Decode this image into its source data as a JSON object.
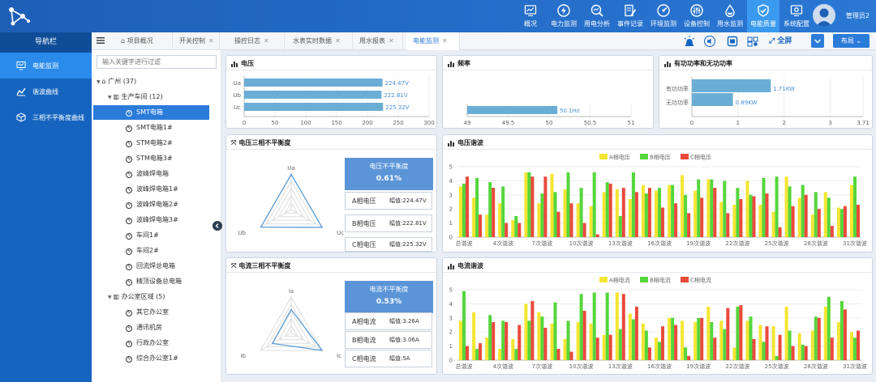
{
  "header": {
    "nav": [
      {
        "label": "概况",
        "icon": "chart-window-icon"
      },
      {
        "label": "电力监测",
        "icon": "lightning-circle-icon"
      },
      {
        "label": "用电分析",
        "icon": "magnifier-chart-icon"
      },
      {
        "label": "事件记录",
        "icon": "document-pen-icon"
      },
      {
        "label": "环境监测",
        "icon": "gauge-icon"
      },
      {
        "label": "设备控制",
        "icon": "sliders-icon"
      },
      {
        "label": "用水监测",
        "icon": "water-drop-icon"
      },
      {
        "label": "电能质量",
        "icon": "shield-check-icon"
      },
      {
        "label": "系统配置",
        "icon": "settings-window-icon"
      }
    ],
    "active_nav": 7,
    "user": "管理员2"
  },
  "sidebar": {
    "title": "导航栏",
    "items": [
      {
        "label": "电能监测"
      },
      {
        "label": "谐波曲线"
      },
      {
        "label": "三相不平衡度曲线"
      }
    ]
  },
  "tabs": [
    {
      "label": "项目概况"
    },
    {
      "label": "开关控制"
    },
    {
      "label": "操控日志"
    },
    {
      "label": "水表实时数据"
    },
    {
      "label": "用水报表"
    },
    {
      "label": "电能监测"
    }
  ],
  "toolbar": {
    "fullscreen": "全屏",
    "layout": "布局"
  },
  "tree": {
    "search_placeholder": "输入关键字进行过滤",
    "nodes": [
      {
        "label": "广州 (37)",
        "level": 0,
        "type": "home"
      },
      {
        "label": "生产车间 (12)",
        "level": 1,
        "type": "building"
      },
      {
        "label": "SMT电箱",
        "level": 2,
        "type": "meter",
        "selected": true
      },
      {
        "label": "SMT电箱1#",
        "level": 2,
        "type": "meter"
      },
      {
        "label": "STM电箱2#",
        "level": 2,
        "type": "meter"
      },
      {
        "label": "STM电箱3#",
        "level": 2,
        "type": "meter"
      },
      {
        "label": "波峰焊电箱",
        "level": 2,
        "type": "meter"
      },
      {
        "label": "波峰焊电箱1#",
        "level": 2,
        "type": "meter"
      },
      {
        "label": "波峰焊电箱2#",
        "level": 2,
        "type": "meter"
      },
      {
        "label": "波峰焊电箱3#",
        "level": 2,
        "type": "meter"
      },
      {
        "label": "车间1#",
        "level": 2,
        "type": "meter"
      },
      {
        "label": "车间2#",
        "level": 2,
        "type": "meter"
      },
      {
        "label": "回流焊总电箱",
        "level": 2,
        "type": "meter"
      },
      {
        "label": "精顶设备总电箱",
        "level": 2,
        "type": "meter"
      },
      {
        "label": "办公室区域 (5)",
        "level": 1,
        "type": "building"
      },
      {
        "label": "其它办公室",
        "level": 2,
        "type": "meter"
      },
      {
        "label": "通讯机房",
        "level": 2,
        "type": "meter"
      },
      {
        "label": "行政办公室",
        "level": 2,
        "type": "meter"
      },
      {
        "label": "综合办公室1#",
        "level": 2,
        "type": "meter"
      }
    ]
  },
  "panels": {
    "voltage": {
      "title": "电压"
    },
    "frequency": {
      "title": "频率"
    },
    "power": {
      "title": "有功功率和无功功率"
    },
    "volt_imbalance": {
      "title": "电压三相不平衡度",
      "box_title": "电压不平衡度",
      "box_value": "0.61%",
      "rows": [
        {
          "label": "A相电压",
          "value": "幅值:224.47V"
        },
        {
          "label": "B相电压",
          "value": "幅值:222.81V"
        },
        {
          "label": "C相电压",
          "value": "幅值:225.32V"
        }
      ],
      "radar_labels": [
        "Ua",
        "Ub",
        "Uc"
      ]
    },
    "volt_harm": {
      "title": "电压谐波"
    },
    "curr_imbalance": {
      "title": "电流三相不平衡度",
      "box_title": "电流不平衡度",
      "box_value": "0.53%",
      "rows": [
        {
          "label": "A相电流",
          "value": "幅值:3.26A"
        },
        {
          "label": "B相电流",
          "value": "幅值:3.06A"
        },
        {
          "label": "C相电流",
          "value": "幅值:5A"
        }
      ],
      "radar_labels": [
        "Ia",
        "Ib",
        "Ic"
      ]
    },
    "curr_harm": {
      "title": "电流谐波"
    }
  },
  "chart_data": [
    {
      "type": "bar",
      "orientation": "horizontal",
      "categories": [
        "Ua",
        "Ub",
        "Uc"
      ],
      "values": [
        224.47,
        222.81,
        225.32
      ],
      "data_labels": [
        "224.47V",
        "222.81V",
        "225.32V"
      ],
      "xlim": [
        0,
        300
      ],
      "xticks": [
        "0",
        "50",
        "100",
        "150",
        "200",
        "250",
        "300"
      ],
      "color": "#6aaed6"
    },
    {
      "type": "bar",
      "orientation": "horizontal",
      "categories": [
        ""
      ],
      "values": [
        50.1
      ],
      "data_labels": [
        "50.1Hz"
      ],
      "xlim": [
        49,
        51
      ],
      "xticks": [
        "49",
        "49.5",
        "50",
        "50.5",
        "51"
      ],
      "color": "#6aaed6"
    },
    {
      "type": "bar",
      "orientation": "horizontal",
      "categories": [
        "有功功率",
        "无功功率"
      ],
      "values": [
        1.71,
        0.89
      ],
      "data_labels": [
        "1.71KW",
        "0.89KW"
      ],
      "xlim": [
        0,
        3.71
      ],
      "xticks": [
        "0",
        "1",
        "2",
        "3",
        "3.71"
      ],
      "color": "#6aaed6"
    },
    {
      "type": "bar",
      "title": "电压谐波",
      "legend": [
        "A相电压",
        "B相电压",
        "C相电压"
      ],
      "colors": [
        "#f4e532",
        "#55d63c",
        "#ea4a3c"
      ],
      "ylim": [
        0,
        5
      ],
      "yticks": [
        "0",
        "1",
        "2",
        "3",
        "4",
        "5"
      ],
      "xticklabels": [
        "总谐波",
        "4次谐波",
        "7次谐波",
        "10次谐波",
        "13次谐波",
        "16次谐波",
        "19次谐波",
        "22次谐波",
        "25次谐波",
        "28次谐波",
        "31次谐波"
      ],
      "series": [
        {
          "name": "A相电压",
          "values": [
            3.6,
            2.8,
            1.6,
            2.4,
            1.2,
            4.6,
            2.4,
            4.5,
            3.4,
            2.4,
            2.2,
            3.2,
            3.4,
            2.7,
            3.7,
            3.3,
            3.7,
            4.4,
            3.3,
            4.1,
            2.5,
            2.3,
            4.0,
            2.3,
            1.8,
            4.3,
            2.8,
            1.6,
            3.2,
            2.1,
            3.7
          ]
        },
        {
          "name": "B相电压",
          "values": [
            3.8,
            4.2,
            3.9,
            3.6,
            1.5,
            4.6,
            3.1,
            3.2,
            4.6,
            3.5,
            4.6,
            3.9,
            1.5,
            4.6,
            3.1,
            3.5,
            3.7,
            3.0,
            4.1,
            4.1,
            4.0,
            3.5,
            3.0,
            4.2,
            4.3,
            3.6,
            3.7,
            3.2,
            2.8,
            2.0,
            4.3
          ]
        },
        {
          "name": "C相电压",
          "values": [
            4.3,
            1.6,
            3.5,
            1.0,
            1.0,
            4.3,
            4.3,
            1.8,
            2.4,
            1.0,
            0.2,
            3.8,
            3.5,
            3.2,
            3.5,
            2.1,
            2.4,
            1.7,
            2.8,
            3.5,
            1.7,
            2.7,
            2.9,
            3.1,
            0.7,
            2.2,
            3.0,
            2.0,
            0.8,
            2.2,
            2.3
          ]
        }
      ]
    },
    {
      "type": "bar",
      "title": "电流谐波",
      "legend": [
        "A相电流",
        "B相电流",
        "C相电流"
      ],
      "colors": [
        "#f4e532",
        "#55d63c",
        "#ea4a3c"
      ],
      "ylim": [
        0,
        5
      ],
      "yticks": [
        "0",
        "1",
        "2",
        "3",
        "4",
        "5"
      ],
      "xticklabels": [
        "总谐波",
        "4次谐波",
        "7次谐波",
        "10次谐波",
        "13次谐波",
        "16次谐波",
        "19次谐波",
        "22次谐波",
        "25次谐波",
        "28次谐波",
        "31次谐波"
      ],
      "series": [
        {
          "name": "A相电流",
          "values": [
            2.8,
            3.4,
            1.6,
            0.8,
            1.5,
            4.0,
            3.4,
            2.6,
            1.5,
            2.7,
            2.6,
            1.8,
            4.8,
            3.3,
            2.6,
            1.6,
            3.0,
            2.8,
            2.7,
            3.8,
            2.8,
            0.9,
            2.8,
            2.5,
            2.4,
            3.8,
            1.9,
            2.1,
            3.8,
            2.7,
            2.0
          ]
        },
        {
          "name": "B相电流",
          "values": [
            4.9,
            0.8,
            3.2,
            2.8,
            0.8,
            2.8,
            3.1,
            4.1,
            2.8,
            4.7,
            4.8,
            4.8,
            2.2,
            2.9,
            2.1,
            1.3,
            3.0,
            0.9,
            3.0,
            2.7,
            2.2,
            3.8,
            3.1,
            1.3,
            0.3,
            2.1,
            1.1,
            3.1,
            4.5,
            4.2,
            1.6
          ]
        },
        {
          "name": "C相电流",
          "values": [
            1.0,
            1.2,
            2.7,
            2.7,
            2.5,
            4.2,
            2.3,
            0.8,
            0.6,
            3.5,
            1.6,
            1.8,
            4.7,
            3.8,
            0.9,
            2.4,
            2.5,
            0.3,
            3.0,
            1.6,
            3.7,
            3.9,
            1.5,
            2.4,
            1.8,
            1.0,
            1.0,
            3.0,
            1.6,
            3.6,
            2.1
          ]
        }
      ]
    }
  ]
}
